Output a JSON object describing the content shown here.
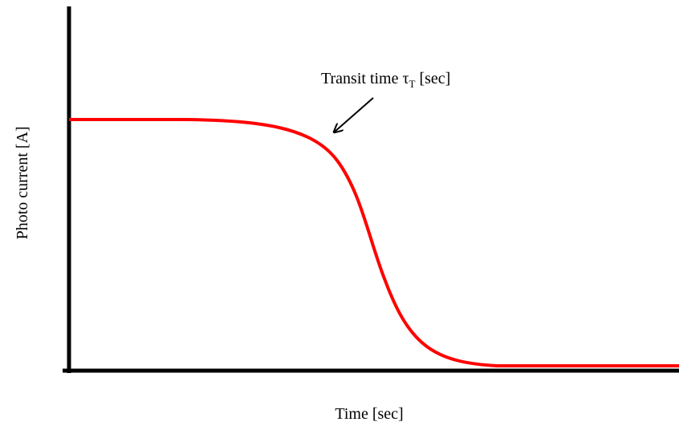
{
  "diagram": {
    "x_axis_label": "Time [sec]",
    "y_axis_label": "Photo current [A]",
    "annotation": {
      "text": "Transit time τ",
      "subscript": "T",
      "unit": " [sec]"
    }
  }
}
